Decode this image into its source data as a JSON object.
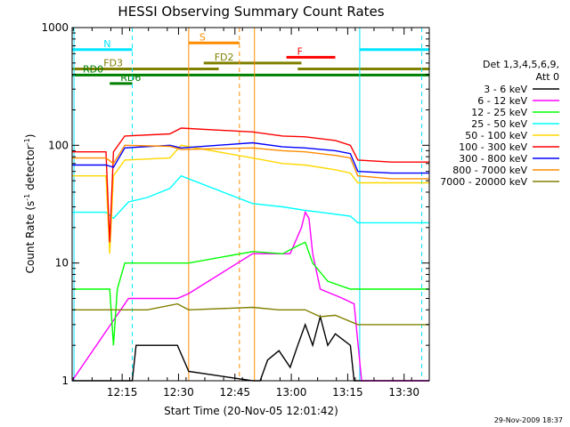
{
  "chart_data": {
    "type": "line",
    "title": "HESSI Observing Summary Count Rates",
    "xlabel": "Start Time (20-Nov-05 12:01:42)",
    "ylabel": "Count Rate (s",
    "ylabel_sup1": "-1",
    "ylabel_mid": " detector",
    "ylabel_sup2": "-1",
    "ylabel_end": ")",
    "yscale": "log",
    "ylim": [
      1,
      1000
    ],
    "xlim_minutes": [
      0,
      95
    ],
    "x_ticks": [
      {
        "label": "12:15",
        "minute": 13.3
      },
      {
        "label": "12:30",
        "minute": 28.3
      },
      {
        "label": "12:45",
        "minute": 43.3
      },
      {
        "label": "13:00",
        "minute": 58.3
      },
      {
        "label": "13:15",
        "minute": 73.3
      },
      {
        "label": "13:30",
        "minute": 88.3
      }
    ],
    "y_ticks": [
      {
        "label": "1",
        "value": 1
      },
      {
        "label": "10",
        "value": 10
      },
      {
        "label": "100",
        "value": 100
      },
      {
        "label": "1000",
        "value": 1000
      }
    ],
    "legend_header": [
      "Det 1,3,4,5,6,9,",
      "Att 0"
    ],
    "legend_placement": "right",
    "series": [
      {
        "name": "3 - 6 keV",
        "color": "#000000",
        "points": [
          [
            0,
            1
          ],
          [
            16,
            1
          ],
          [
            17,
            2
          ],
          [
            28,
            2
          ],
          [
            31,
            1.2
          ],
          [
            48,
            1
          ],
          [
            50,
            1
          ],
          [
            52,
            1.5
          ],
          [
            55,
            1.8
          ],
          [
            58,
            1.3
          ],
          [
            60,
            2
          ],
          [
            62,
            3
          ],
          [
            64,
            2
          ],
          [
            66,
            3.5
          ],
          [
            68,
            2
          ],
          [
            70,
            2.5
          ],
          [
            74,
            2
          ],
          [
            75,
            1
          ],
          [
            95,
            1
          ]
        ]
      },
      {
        "name": "6 - 12 keV",
        "color": "#ff00ff",
        "points": [
          [
            0,
            1
          ],
          [
            15,
            5
          ],
          [
            28,
            5
          ],
          [
            31,
            5.5
          ],
          [
            48,
            12
          ],
          [
            58,
            12
          ],
          [
            61,
            20
          ],
          [
            62,
            27
          ],
          [
            63,
            24
          ],
          [
            64,
            12
          ],
          [
            66,
            6
          ],
          [
            72,
            5
          ],
          [
            75,
            4.5
          ],
          [
            77,
            1
          ],
          [
            95,
            1
          ]
        ]
      },
      {
        "name": "12 - 25 keV",
        "color": "#00ff00",
        "points": [
          [
            0,
            6
          ],
          [
            10,
            6
          ],
          [
            11,
            2
          ],
          [
            12,
            6
          ],
          [
            14,
            10
          ],
          [
            28,
            10
          ],
          [
            31,
            10
          ],
          [
            48,
            12.5
          ],
          [
            56,
            12
          ],
          [
            60,
            14
          ],
          [
            62,
            15
          ],
          [
            64,
            10
          ],
          [
            68,
            7
          ],
          [
            74,
            6
          ],
          [
            76,
            6
          ],
          [
            80,
            6
          ],
          [
            95,
            6
          ]
        ]
      },
      {
        "name": "25 - 50 keV",
        "color": "#00ffff",
        "points": [
          [
            0,
            27
          ],
          [
            9,
            27
          ],
          [
            11,
            24
          ],
          [
            15,
            33
          ],
          [
            20,
            36
          ],
          [
            26,
            43
          ],
          [
            29,
            55
          ],
          [
            48,
            32
          ],
          [
            56,
            30
          ],
          [
            62,
            28
          ],
          [
            66,
            27
          ],
          [
            74,
            25
          ],
          [
            76,
            22
          ],
          [
            85,
            22
          ],
          [
            95,
            22
          ]
        ]
      },
      {
        "name": "50 - 100 keV",
        "color": "#ffd700",
        "points": [
          [
            0,
            55
          ],
          [
            9,
            55
          ],
          [
            10,
            12
          ],
          [
            11,
            55
          ],
          [
            14,
            75
          ],
          [
            26,
            78
          ],
          [
            29,
            100
          ],
          [
            48,
            78
          ],
          [
            56,
            70
          ],
          [
            62,
            68
          ],
          [
            70,
            62
          ],
          [
            74,
            58
          ],
          [
            76,
            48
          ],
          [
            85,
            48
          ],
          [
            95,
            48
          ]
        ]
      },
      {
        "name": "100 - 300 keV",
        "color": "#ff0000",
        "points": [
          [
            0,
            88
          ],
          [
            9,
            88
          ],
          [
            10,
            15
          ],
          [
            11,
            88
          ],
          [
            14,
            120
          ],
          [
            26,
            125
          ],
          [
            29,
            140
          ],
          [
            48,
            130
          ],
          [
            56,
            120
          ],
          [
            62,
            118
          ],
          [
            70,
            110
          ],
          [
            74,
            100
          ],
          [
            76,
            75
          ],
          [
            85,
            72
          ],
          [
            95,
            72
          ]
        ]
      },
      {
        "name": "300 - 800 keV",
        "color": "#0000ff",
        "points": [
          [
            0,
            68
          ],
          [
            9,
            68
          ],
          [
            11,
            65
          ],
          [
            14,
            95
          ],
          [
            26,
            100
          ],
          [
            29,
            95
          ],
          [
            48,
            105
          ],
          [
            56,
            97
          ],
          [
            62,
            95
          ],
          [
            70,
            90
          ],
          [
            74,
            85
          ],
          [
            76,
            60
          ],
          [
            85,
            58
          ],
          [
            95,
            58
          ]
        ]
      },
      {
        "name": "800 - 7000 keV",
        "color": "#ff8c00",
        "points": [
          [
            0,
            78
          ],
          [
            9,
            78
          ],
          [
            11,
            70
          ],
          [
            14,
            100
          ],
          [
            26,
            98
          ],
          [
            29,
            92
          ],
          [
            48,
            95
          ],
          [
            56,
            90
          ],
          [
            62,
            88
          ],
          [
            70,
            82
          ],
          [
            74,
            78
          ],
          [
            76,
            55
          ],
          [
            85,
            52
          ],
          [
            95,
            52
          ]
        ]
      },
      {
        "name": "7000 - 20000 keV",
        "color": "#808000",
        "points": [
          [
            0,
            4
          ],
          [
            10,
            4
          ],
          [
            14,
            4
          ],
          [
            20,
            4
          ],
          [
            28,
            4.5
          ],
          [
            31,
            4
          ],
          [
            48,
            4.2
          ],
          [
            55,
            4
          ],
          [
            62,
            4
          ],
          [
            66,
            3.5
          ],
          [
            70,
            3.6
          ],
          [
            76,
            3
          ],
          [
            85,
            3
          ],
          [
            95,
            3
          ]
        ]
      }
    ],
    "flags": [
      {
        "label": "N",
        "color": "#00e5ff",
        "level": 650,
        "start": 0,
        "end": 95,
        "gap": [
          16,
          76.5
        ]
      },
      {
        "label": "S",
        "color": "#ff8c00",
        "level": 740,
        "start": 31,
        "end": 44.5
      },
      {
        "label": "F",
        "color": "#ff0000",
        "level": 560,
        "start": 57,
        "end": 70
      },
      {
        "label": "FD2",
        "color": "#808000",
        "level": 500,
        "start": 35,
        "end": 61
      },
      {
        "label": "FD3",
        "color": "#808000",
        "level": 445,
        "start": 0,
        "end": 95,
        "gap": [
          39,
          60
        ]
      },
      {
        "label": "RD0",
        "color": "#008000",
        "level": 395,
        "start": 0,
        "end": 95
      },
      {
        "label": "RD6",
        "color": "#008000",
        "level": 335,
        "start": 10,
        "end": 16
      }
    ],
    "vlines": [
      {
        "minute": 0.5,
        "color": "#00e5ff",
        "style": "solid"
      },
      {
        "minute": 16,
        "color": "#00e5ff",
        "style": "dashed"
      },
      {
        "minute": 31,
        "color": "#ff8c00",
        "style": "solid"
      },
      {
        "minute": 44.5,
        "color": "#ff8c00",
        "style": "dashed"
      },
      {
        "minute": 48.5,
        "color": "#ff8c00",
        "style": "solid"
      },
      {
        "minute": 76.5,
        "color": "#00e5ff",
        "style": "solid"
      },
      {
        "minute": 93,
        "color": "#00e5ff",
        "style": "dashed"
      }
    ],
    "grid": false
  },
  "footer_stamp": "29-Nov-2009 18:37"
}
